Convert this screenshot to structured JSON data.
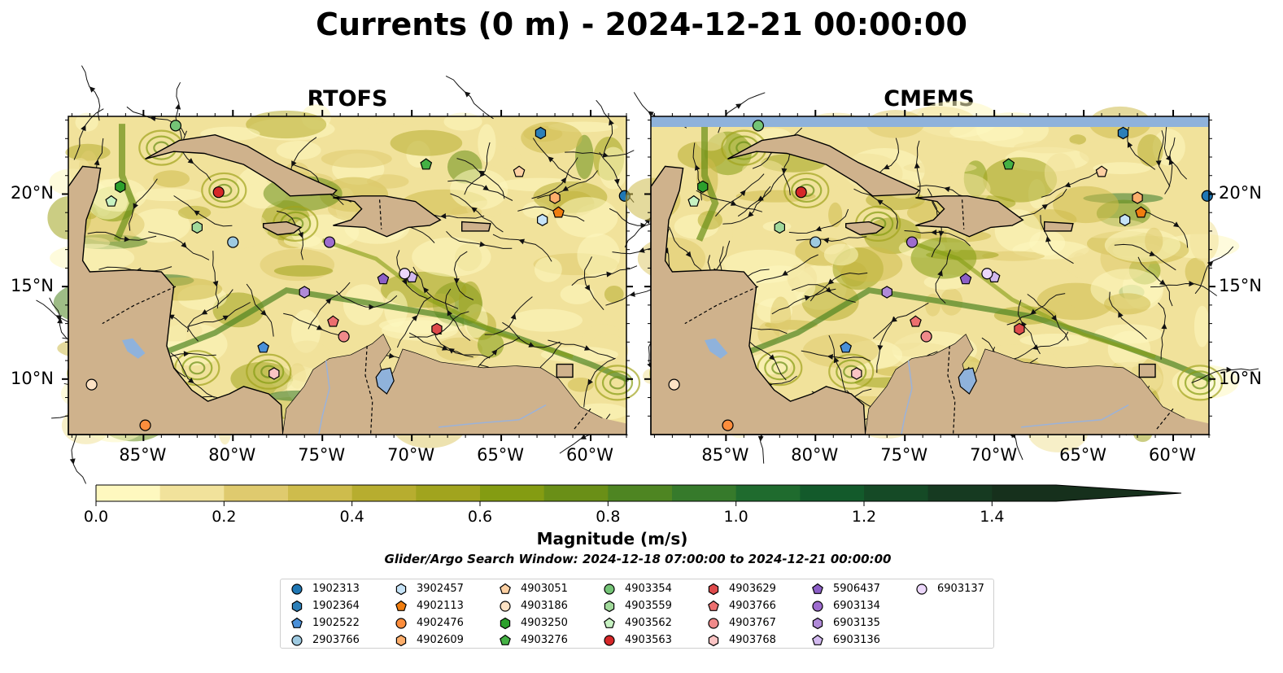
{
  "title": "Currents (0 m) - 2024-12-21 00:00:00",
  "panels": [
    {
      "id": "rtofs",
      "title": "RTOFS"
    },
    {
      "id": "cmems",
      "title": "CMEMS"
    }
  ],
  "axes": {
    "lat_labels": [
      "20°N",
      "15°N",
      "10°N"
    ],
    "lon_labels": [
      "85°W",
      "80°W",
      "75°W",
      "70°W",
      "65°W",
      "60°W"
    ],
    "lon_range": [
      -89.2,
      -58.0
    ],
    "lat_range": [
      7.0,
      24.2
    ]
  },
  "colorbar": {
    "label": "Magnitude (m/s)",
    "tick_labels": [
      "0.0",
      "0.2",
      "0.4",
      "0.6",
      "0.8",
      "1.0",
      "1.2",
      "1.4"
    ],
    "min": 0.0,
    "max": 1.5,
    "step": 0.1,
    "extend": "max",
    "colors": [
      "#fef8bf",
      "#f1e29b",
      "#dfca6e",
      "#cebc4c",
      "#b7ad2f",
      "#a1a41e",
      "#849c12",
      "#6a8f17",
      "#4e8522",
      "#367a2b",
      "#1f6b2e",
      "#135a2b",
      "#154a26",
      "#163a21",
      "#16301c"
    ]
  },
  "map_colors": {
    "land": "#cfb28c",
    "water_lake": "#8fb2db",
    "river": "#9bb2d9"
  },
  "search_window": "Glider/Argo Search Window: 2024-12-18 07:00:00 to 2024-12-21 00:00:00",
  "legend": [
    {
      "id": "1902313",
      "marker": "circle",
      "color": "#1f77b4"
    },
    {
      "id": "1902364",
      "marker": "hexagon",
      "color": "#2c7fb8"
    },
    {
      "id": "1902522",
      "marker": "pentagon",
      "color": "#4a90d9"
    },
    {
      "id": "2903766",
      "marker": "circle",
      "color": "#9ecae1"
    },
    {
      "id": "3902457",
      "marker": "hexagon",
      "color": "#c6e3f7"
    },
    {
      "id": "4902113",
      "marker": "pentagon",
      "color": "#f07d0f"
    },
    {
      "id": "4902476",
      "marker": "circle",
      "color": "#fd8d3c"
    },
    {
      "id": "4902609",
      "marker": "hexagon",
      "color": "#fdae6b"
    },
    {
      "id": "4903051",
      "marker": "pentagon",
      "color": "#fdd0a2"
    },
    {
      "id": "4903186",
      "marker": "circle",
      "color": "#fde2c4"
    },
    {
      "id": "4903250",
      "marker": "hexagon",
      "color": "#2ca02c"
    },
    {
      "id": "4903276",
      "marker": "pentagon",
      "color": "#44b144"
    },
    {
      "id": "4903354",
      "marker": "circle",
      "color": "#74c476"
    },
    {
      "id": "4903559",
      "marker": "hexagon",
      "color": "#a1d99b"
    },
    {
      "id": "4903562",
      "marker": "pentagon",
      "color": "#c7f2c2"
    },
    {
      "id": "4903563",
      "marker": "circle",
      "color": "#d62728"
    },
    {
      "id": "4903629",
      "marker": "hexagon",
      "color": "#de4a4b"
    },
    {
      "id": "4903766",
      "marker": "pentagon",
      "color": "#ec6f6f"
    },
    {
      "id": "4903767",
      "marker": "circle",
      "color": "#f08a8a"
    },
    {
      "id": "4903768",
      "marker": "hexagon",
      "color": "#fbc4c4"
    },
    {
      "id": "5906437",
      "marker": "pentagon",
      "color": "#8c5fc7"
    },
    {
      "id": "6903134",
      "marker": "circle",
      "color": "#9e6ccf"
    },
    {
      "id": "6903135",
      "marker": "hexagon",
      "color": "#b08ad8"
    },
    {
      "id": "6903136",
      "marker": "pentagon",
      "color": "#d2b9ef"
    },
    {
      "id": "6903137",
      "marker": "circle",
      "color": "#ecd7fb"
    }
  ],
  "floats": [
    {
      "id": "1902313",
      "lon": -58.1,
      "lat": 19.9
    },
    {
      "id": "1902364",
      "lon": -62.8,
      "lat": 23.3
    },
    {
      "id": "1902522",
      "lon": -78.3,
      "lat": 11.7
    },
    {
      "id": "2903766",
      "lon": -80.0,
      "lat": 17.4
    },
    {
      "id": "3902457",
      "lon": -62.7,
      "lat": 18.6
    },
    {
      "id": "4902113",
      "lon": -61.8,
      "lat": 19.0
    },
    {
      "id": "4902476",
      "lon": -84.9,
      "lat": 7.5
    },
    {
      "id": "4902609",
      "lon": -62.0,
      "lat": 19.8
    },
    {
      "id": "4903051",
      "lon": -64.0,
      "lat": 21.2
    },
    {
      "id": "4903186",
      "lon": -87.9,
      "lat": 9.7
    },
    {
      "id": "4903250",
      "lon": -86.3,
      "lat": 20.4
    },
    {
      "id": "4903276",
      "lon": -69.2,
      "lat": 21.6
    },
    {
      "id": "4903354",
      "lon": -83.2,
      "lat": 23.7
    },
    {
      "id": "4903559",
      "lon": -82.0,
      "lat": 18.2
    },
    {
      "id": "4903562",
      "lon": -86.8,
      "lat": 19.6
    },
    {
      "id": "4903563",
      "lon": -80.8,
      "lat": 20.1
    },
    {
      "id": "4903629",
      "lon": -68.6,
      "lat": 12.7
    },
    {
      "id": "4903766",
      "lon": -74.4,
      "lat": 13.1
    },
    {
      "id": "4903767",
      "lon": -73.8,
      "lat": 12.3
    },
    {
      "id": "4903768",
      "lon": -77.7,
      "lat": 10.3
    },
    {
      "id": "5906437",
      "lon": -71.6,
      "lat": 15.4
    },
    {
      "id": "6903134",
      "lon": -74.6,
      "lat": 17.4
    },
    {
      "id": "6903135",
      "lon": -76.0,
      "lat": 14.7
    },
    {
      "id": "6903136",
      "lon": -70.0,
      "lat": 15.5
    },
    {
      "id": "6903137",
      "lon": -70.4,
      "lat": 15.7
    }
  ]
}
